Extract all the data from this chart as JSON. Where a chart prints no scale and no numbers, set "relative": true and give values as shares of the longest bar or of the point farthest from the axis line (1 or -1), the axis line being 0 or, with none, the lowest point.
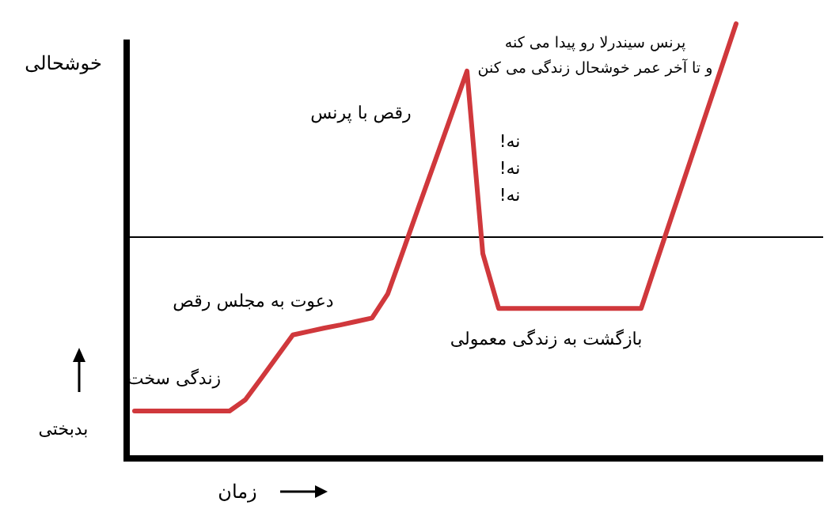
{
  "chart_data": {
    "type": "line",
    "relative": true,
    "ylabel": "خوشحالی",
    "xlabel": "زمان",
    "categories": [
      null,
      null,
      null,
      null,
      null,
      null,
      null,
      null,
      null,
      null,
      null,
      null,
      null,
      null,
      null,
      null,
      null,
      null,
      null,
      null,
      null,
      null,
      null,
      null,
      null,
      null,
      null,
      null,
      null,
      null,
      null,
      null,
      null,
      null,
      null,
      null,
      null,
      null,
      null
    ],
    "series": [
      {
        "color": "#d0383c",
        "values": [
          0.109,
          0.109,
          0.109,
          0.109,
          0.109,
          0.109,
          0.109,
          0.135,
          0.184,
          0.234,
          0.284,
          0.292,
          0.3,
          0.307,
          0.315,
          0.323,
          0.379,
          0.481,
          0.584,
          0.686,
          0.788,
          0.891,
          0.471,
          0.345,
          0.345,
          0.345,
          0.345,
          0.345,
          0.345,
          0.345,
          0.345,
          0.345,
          0.345,
          0.455,
          0.564,
          0.673,
          0.782,
          0.891,
          1
        ]
      }
    ],
    "ref_lines": [
      {
        "axis": "y",
        "value": 0.509,
        "color": "#000000"
      }
    ],
    "annotations": [
      "بدبختی",
      "زندگی سخت",
      "دعوت به مجلس رقص",
      "رقص با پرنس",
      "نه!",
      "نه!",
      "نه!",
      "بازگشت به زندگی معمولی",
      "پرنس سیندرلا رو پیدا می کنه",
      "و تا آخر عمر خوشحال زندگی می کنن"
    ]
  }
}
